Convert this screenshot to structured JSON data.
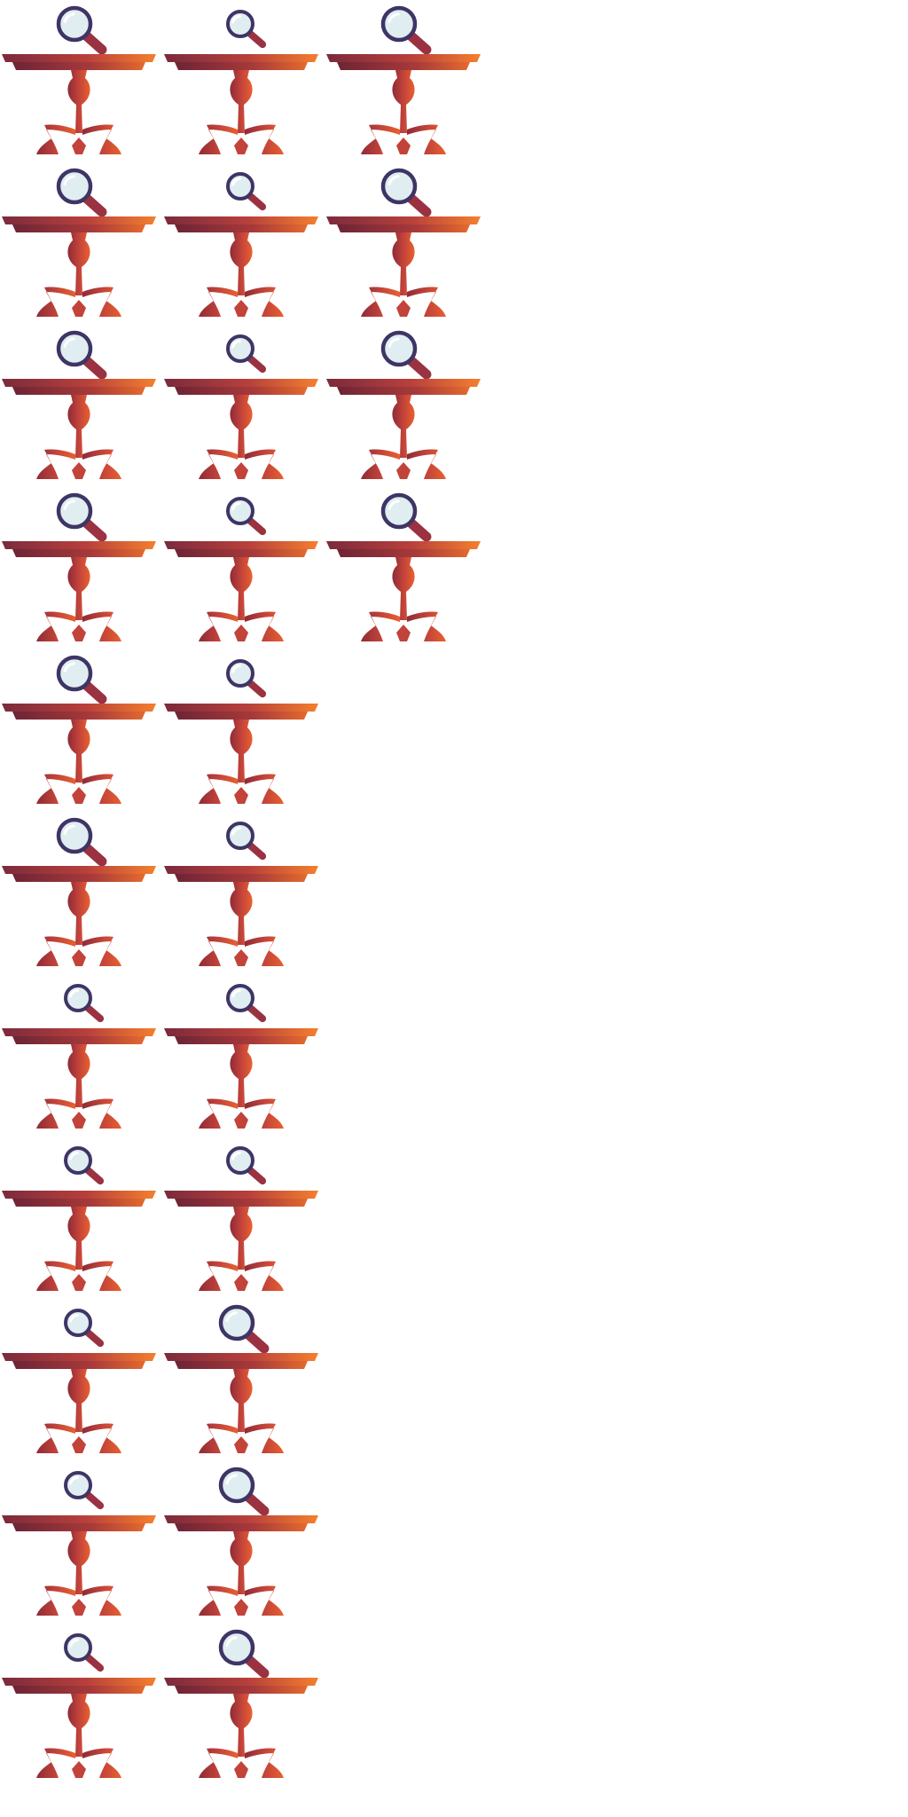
{
  "sprite_sheet": {
    "colors": {
      "table_dark": "#7b2a3c",
      "table_mid": "#b8403b",
      "table_light": "#f47f2e",
      "leg": "#c2433a",
      "leg_shadow": "#8e2b37",
      "lens_rim": "#3e3566",
      "lens_glass": "#e1eef1",
      "lens_highlight": "#ffffff",
      "handle": "#9a3241"
    },
    "rows": [
      {
        "frames": [
          {
            "icon": "magnifier-table",
            "lens": "large"
          },
          {
            "icon": "magnifier-table",
            "lens": "small"
          },
          {
            "icon": "magnifier-table",
            "lens": "large"
          }
        ]
      },
      {
        "frames": [
          {
            "icon": "magnifier-table",
            "lens": "large"
          },
          {
            "icon": "magnifier-table",
            "lens": "small"
          },
          {
            "icon": "magnifier-table",
            "lens": "large"
          }
        ]
      },
      {
        "frames": [
          {
            "icon": "magnifier-table",
            "lens": "large"
          },
          {
            "icon": "magnifier-table",
            "lens": "small"
          },
          {
            "icon": "magnifier-table",
            "lens": "large"
          }
        ]
      },
      {
        "frames": [
          {
            "icon": "magnifier-table",
            "lens": "large"
          },
          {
            "icon": "magnifier-table",
            "lens": "small"
          },
          {
            "icon": "magnifier-table",
            "lens": "large"
          }
        ]
      },
      {
        "frames": [
          {
            "icon": "magnifier-table",
            "lens": "large"
          },
          {
            "icon": "magnifier-table",
            "lens": "small"
          }
        ]
      },
      {
        "frames": [
          {
            "icon": "magnifier-table",
            "lens": "large"
          },
          {
            "icon": "magnifier-table",
            "lens": "small"
          }
        ]
      },
      {
        "frames": [
          {
            "icon": "magnifier-table",
            "lens": "small"
          },
          {
            "icon": "magnifier-table",
            "lens": "small"
          }
        ]
      },
      {
        "frames": [
          {
            "icon": "magnifier-table",
            "lens": "small"
          },
          {
            "icon": "magnifier-table",
            "lens": "small"
          }
        ]
      },
      {
        "frames": [
          {
            "icon": "magnifier-table",
            "lens": "small"
          },
          {
            "icon": "magnifier-table",
            "lens": "large"
          }
        ]
      },
      {
        "frames": [
          {
            "icon": "magnifier-table",
            "lens": "small"
          },
          {
            "icon": "magnifier-table",
            "lens": "large"
          }
        ]
      },
      {
        "frames": [
          {
            "icon": "magnifier-table",
            "lens": "small"
          },
          {
            "icon": "magnifier-table",
            "lens": "large"
          }
        ]
      }
    ]
  }
}
